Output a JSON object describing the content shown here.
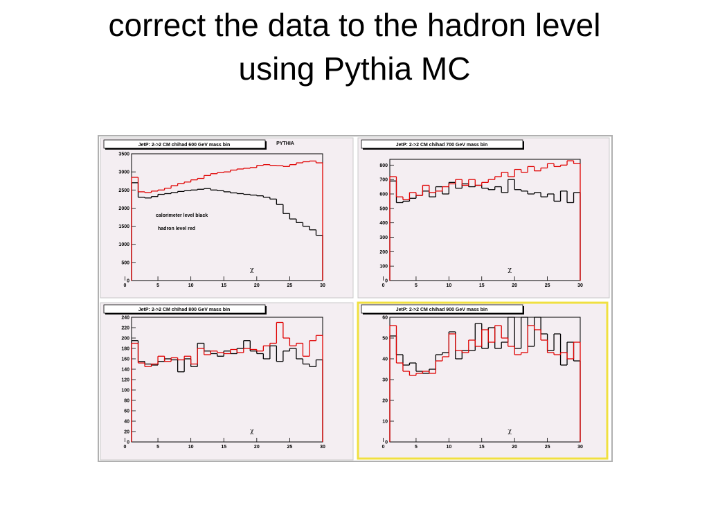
{
  "slide": {
    "title_lines": [
      "correct the data to the hadron level",
      "using Pythia MC"
    ]
  },
  "chart_data": [
    {
      "type": "histogram",
      "title": "JetP: 2->2 CM chihad 600 GeV mass bin",
      "xlabel": "χ",
      "annotations": [
        "PYTHIA",
        "calorimeter level black",
        "hadron level red"
      ],
      "bins": [
        1,
        2,
        3,
        4,
        5,
        6,
        7,
        8,
        9,
        10,
        11,
        12,
        13,
        14,
        15,
        16,
        17,
        18,
        19,
        20,
        21,
        22,
        23,
        24,
        25,
        26,
        27,
        28,
        29,
        30
      ],
      "series": [
        {
          "color": "#000000",
          "values": [
            2700,
            2300,
            2280,
            2320,
            2380,
            2400,
            2430,
            2460,
            2480,
            2500,
            2520,
            2540,
            2500,
            2480,
            2450,
            2420,
            2400,
            2380,
            2360,
            2340,
            2300,
            2250,
            2100,
            1850,
            1700,
            1600,
            1500,
            1400,
            1250
          ]
        },
        {
          "color": "#e00000",
          "values": [
            2850,
            2450,
            2430,
            2470,
            2500,
            2550,
            2620,
            2680,
            2720,
            2780,
            2820,
            2900,
            2950,
            2980,
            3000,
            3050,
            3080,
            3100,
            3120,
            3180,
            3200,
            3180,
            3170,
            3150,
            3200,
            3250,
            3280,
            3300,
            3250
          ]
        }
      ],
      "xlim": [
        1,
        30
      ],
      "xticks": [
        0,
        5,
        10,
        15,
        20,
        25,
        30
      ],
      "ylim": [
        0,
        3500
      ],
      "yticks": [
        0,
        500,
        1000,
        1500,
        2000,
        2500,
        3000,
        3500
      ],
      "highlight": false
    },
    {
      "type": "histogram",
      "title": "JetP: 2->2 CM chihad 700 GeV mass bin",
      "xlabel": "χ",
      "annotations": [],
      "bins": [
        1,
        2,
        3,
        4,
        5,
        6,
        7,
        8,
        9,
        10,
        11,
        12,
        13,
        14,
        15,
        16,
        17,
        18,
        19,
        20,
        21,
        22,
        23,
        24,
        25,
        26,
        27,
        28,
        29,
        30
      ],
      "series": [
        {
          "color": "#000000",
          "values": [
            690,
            540,
            550,
            570,
            590,
            620,
            580,
            650,
            600,
            680,
            640,
            670,
            650,
            660,
            640,
            630,
            650,
            610,
            700,
            630,
            620,
            600,
            610,
            580,
            600,
            550,
            620,
            540,
            610
          ]
        },
        {
          "color": "#e00000",
          "values": [
            720,
            580,
            560,
            610,
            590,
            660,
            610,
            620,
            650,
            670,
            700,
            660,
            700,
            660,
            680,
            700,
            720,
            750,
            720,
            770,
            750,
            790,
            760,
            780,
            810,
            790,
            800,
            830,
            810
          ]
        }
      ],
      "xlim": [
        1,
        30
      ],
      "xticks": [
        0,
        5,
        10,
        15,
        20,
        25,
        30
      ],
      "ylim": [
        0,
        840
      ],
      "yticks": [
        0,
        100,
        200,
        300,
        400,
        500,
        600,
        700,
        800
      ],
      "highlight": false
    },
    {
      "type": "histogram",
      "title": "JetP: 2->2 CM chihad 800 GeV mass bin",
      "xlabel": "χ",
      "annotations": [],
      "bins": [
        1,
        2,
        3,
        4,
        5,
        6,
        7,
        8,
        9,
        10,
        11,
        12,
        13,
        14,
        15,
        16,
        17,
        18,
        19,
        20,
        21,
        22,
        23,
        24,
        25,
        26,
        27,
        28,
        29,
        30
      ],
      "series": [
        {
          "color": "#000000",
          "values": [
            195,
            155,
            150,
            148,
            155,
            160,
            158,
            135,
            160,
            145,
            190,
            175,
            170,
            165,
            175,
            170,
            180,
            195,
            175,
            170,
            160,
            185,
            155,
            175,
            180,
            160,
            150,
            145,
            158
          ]
        },
        {
          "color": "#e00000",
          "values": [
            190,
            152,
            145,
            150,
            165,
            155,
            162,
            158,
            165,
            150,
            180,
            168,
            175,
            172,
            170,
            178,
            172,
            180,
            178,
            175,
            185,
            190,
            230,
            200,
            185,
            190,
            165,
            195,
            205
          ]
        }
      ],
      "xlim": [
        1,
        30
      ],
      "xticks": [
        0,
        5,
        10,
        15,
        20,
        25,
        30
      ],
      "ylim": [
        0,
        240
      ],
      "yticks": [
        0,
        20,
        40,
        60,
        80,
        100,
        120,
        140,
        160,
        180,
        200,
        220,
        240
      ],
      "highlight": false
    },
    {
      "type": "histogram",
      "title": "JetP: 2->2 CM chihad 900 GeV mass bin",
      "xlabel": "χ",
      "annotations": [],
      "bins": [
        1,
        2,
        3,
        4,
        5,
        6,
        7,
        8,
        9,
        10,
        11,
        12,
        13,
        14,
        15,
        16,
        17,
        18,
        19,
        20,
        21,
        22,
        23,
        24,
        25,
        26,
        27,
        28,
        29,
        30
      ],
      "series": [
        {
          "color": "#000000",
          "values": [
            51,
            42,
            37,
            38,
            34,
            33,
            35,
            42,
            43,
            53,
            40,
            44,
            44,
            57,
            45,
            55,
            45,
            48,
            60,
            45,
            60,
            46,
            60,
            52,
            44,
            52,
            37,
            48,
            39
          ]
        },
        {
          "color": "#e00000",
          "values": [
            56,
            38,
            34,
            32,
            33,
            34,
            33,
            39,
            41,
            52,
            44,
            43,
            49,
            46,
            54,
            48,
            56,
            50,
            46,
            42,
            43,
            56,
            54,
            49,
            43,
            42,
            43,
            40,
            48
          ]
        }
      ],
      "xlim": [
        1,
        30
      ],
      "xticks": [
        0,
        5,
        10,
        15,
        20,
        25,
        30
      ],
      "ylim": [
        0,
        60
      ],
      "yticks": [
        0,
        10,
        20,
        30,
        40,
        50,
        60
      ],
      "highlight": true
    }
  ]
}
